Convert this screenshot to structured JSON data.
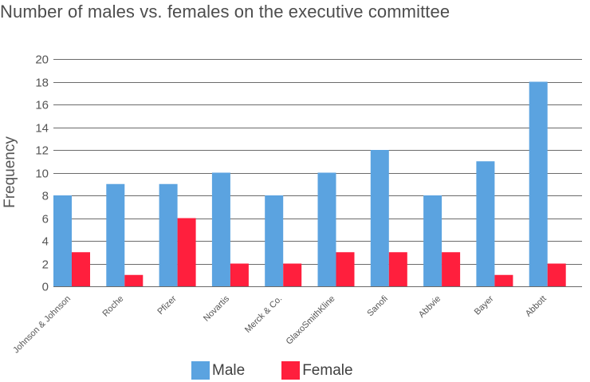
{
  "chart_data": {
    "type": "bar",
    "title": "Number of males vs. females on the executive committee",
    "ylabel": "Frequency",
    "xlabel": "",
    "ylim": [
      0,
      20
    ],
    "yticks": [
      0,
      2,
      4,
      6,
      8,
      10,
      12,
      14,
      16,
      18,
      20
    ],
    "grid": true,
    "legend_position": "bottom",
    "categories": [
      "Johnson & Johnson",
      "Roche",
      "Pfizer",
      "Novartis",
      "Merck & Co.",
      "GlaxoSmithKline",
      "Sanofi",
      "Abbvie",
      "Bayer",
      "Abbott"
    ],
    "series": [
      {
        "name": "Male",
        "color": "#5ba3e0",
        "values": [
          8,
          9,
          9,
          10,
          8,
          10,
          12,
          8,
          11,
          18
        ]
      },
      {
        "name": "Female",
        "color": "#ff1f3d",
        "values": [
          3,
          1,
          6,
          2,
          2,
          3,
          3,
          3,
          1,
          2
        ]
      }
    ]
  }
}
